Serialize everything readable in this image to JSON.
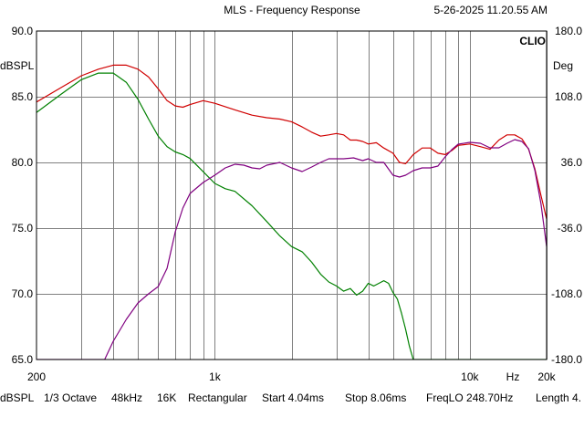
{
  "header": {
    "title": "MLS - Frequency Response",
    "timestamp": "5-26-2025  11.20.55 AM",
    "brand": "CLIO"
  },
  "footer": {
    "items": [
      "dBSPL",
      "1/3 Octave",
      "48kHz",
      "16K",
      "Rectangular",
      "Start 4.04ms",
      "Stop 8.06ms",
      "FreqLO 248.70Hz",
      "Length 4."
    ]
  },
  "chart_data": {
    "type": "line",
    "title": "MLS - Frequency Response",
    "xlabel": "Hz",
    "x_scale": "log",
    "xlim": [
      200,
      20000
    ],
    "x_tick_labels": [
      {
        "value": 200,
        "label": "200"
      },
      {
        "value": 1000,
        "label": "1k"
      },
      {
        "value": 10000,
        "label": "10k"
      },
      {
        "value": 20000,
        "label": "20k"
      }
    ],
    "ylabel_left": "dBSPL",
    "ylim_left": [
      65,
      90
    ],
    "y_ticks_left": [
      "90.0",
      "85.0",
      "80.0",
      "75.0",
      "70.0",
      "65.0"
    ],
    "ylabel_right": "Deg",
    "ylim_right": [
      -180,
      180
    ],
    "y_ticks_right": [
      "180.0",
      "108.0",
      "36.0",
      "-36.0",
      "-108.0",
      "-180.0"
    ],
    "grid": true,
    "colors": {
      "red": "#d00000",
      "green": "#008000",
      "purple": "#800080",
      "grid": "#808080"
    },
    "series": [
      {
        "color": "#d00000",
        "axis": "left",
        "x": [
          200,
          250,
          300,
          350,
          400,
          450,
          500,
          550,
          600,
          650,
          700,
          750,
          800,
          900,
          1000,
          1200,
          1400,
          1600,
          1800,
          2000,
          2200,
          2400,
          2600,
          2800,
          3000,
          3200,
          3400,
          3600,
          3800,
          4000,
          4300,
          4600,
          5000,
          5300,
          5600,
          6000,
          6500,
          7000,
          7500,
          8000,
          8500,
          9000,
          10000,
          11000,
          12000,
          13000,
          14000,
          15000,
          16000,
          17000,
          18000,
          19000,
          20000
        ],
        "values": [
          84.6,
          85.7,
          86.6,
          87.1,
          87.4,
          87.4,
          87.1,
          86.5,
          85.6,
          84.7,
          84.3,
          84.2,
          84.4,
          84.7,
          84.5,
          84.0,
          83.6,
          83.4,
          83.3,
          83.1,
          82.7,
          82.3,
          82.0,
          82.1,
          82.2,
          82.1,
          81.7,
          81.7,
          81.6,
          81.4,
          81.5,
          81.1,
          80.7,
          80.0,
          79.9,
          80.6,
          81.1,
          81.1,
          80.7,
          80.6,
          80.9,
          81.3,
          81.4,
          81.2,
          81.0,
          81.7,
          82.1,
          82.1,
          81.8,
          81.0,
          79.5,
          77.5,
          75.7
        ]
      },
      {
        "color": "#008000",
        "axis": "left",
        "x": [
          200,
          250,
          300,
          350,
          400,
          450,
          500,
          550,
          600,
          650,
          700,
          750,
          800,
          900,
          1000,
          1100,
          1200,
          1400,
          1600,
          1800,
          2000,
          2200,
          2400,
          2600,
          2800,
          3000,
          3200,
          3400,
          3600,
          3800,
          4000,
          4200,
          4400,
          4600,
          4800,
          5000,
          5200,
          5400,
          5600,
          5800,
          6000,
          6200,
          6500,
          20000
        ],
        "values": [
          83.8,
          85.2,
          86.3,
          86.8,
          86.8,
          86.1,
          84.8,
          83.3,
          82.0,
          81.2,
          80.8,
          80.6,
          80.3,
          79.3,
          78.4,
          78.0,
          77.8,
          76.7,
          75.5,
          74.4,
          73.6,
          73.2,
          72.4,
          71.5,
          70.9,
          70.6,
          70.2,
          70.4,
          69.9,
          70.2,
          70.8,
          70.6,
          70.8,
          71.0,
          70.8,
          70.1,
          69.6,
          68.5,
          67.3,
          66.0,
          65.0,
          65.0,
          65.0,
          65.0
        ]
      },
      {
        "color": "#800080",
        "axis": "right",
        "x": [
          200,
          250,
          300,
          350,
          370,
          400,
          450,
          500,
          550,
          600,
          650,
          700,
          750,
          800,
          900,
          1000,
          1100,
          1200,
          1300,
          1400,
          1500,
          1600,
          1800,
          2000,
          2200,
          2400,
          2600,
          2800,
          3000,
          3200,
          3500,
          3800,
          4000,
          4300,
          4600,
          5000,
          5300,
          5600,
          6000,
          6500,
          7000,
          7500,
          8000,
          8500,
          9000,
          10000,
          11000,
          12000,
          13000,
          14000,
          15000,
          16000,
          17000,
          18000,
          19000,
          20000
        ],
        "values": [
          -180,
          -180,
          -180,
          -180,
          -180,
          -160,
          -136,
          -118,
          -108,
          -100,
          -80,
          -40,
          -14,
          2,
          14,
          22,
          30,
          34,
          33,
          30,
          29,
          33,
          36,
          30,
          26,
          31,
          36,
          40,
          40,
          40,
          41,
          38,
          40,
          36,
          36,
          22,
          20,
          22,
          27,
          30,
          30,
          32,
          42,
          50,
          56,
          58,
          57,
          52,
          52,
          57,
          61,
          59,
          51,
          27,
          -9,
          -56
        ]
      }
    ]
  }
}
